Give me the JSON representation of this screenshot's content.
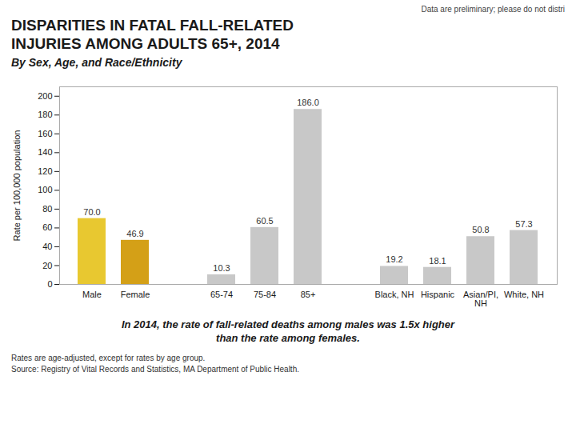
{
  "chart_data": {
    "type": "bar",
    "title": "DISPARITIES IN FATAL FALL-RELATED\nINJURIES AMONG ADULTS 65+, 2014",
    "subtitle": "By Sex, Age, and Race/Ethnicity",
    "categories": [
      "Male",
      "Female",
      null,
      "65-74",
      "75-84",
      "85+",
      null,
      "Black, NH",
      "Hispanic",
      "Asian/PI,\nNH",
      "White, NH"
    ],
    "values": [
      70.0,
      46.9,
      0,
      10.3,
      60.5,
      186.0,
      0,
      19.2,
      18.1,
      50.8,
      57.3
    ],
    "value_labels": [
      "70.0",
      "46.9",
      null,
      "10.3",
      "60.5",
      "186.0",
      null,
      "19.2",
      "18.1",
      "50.8",
      "57.3"
    ],
    "data_labels": true,
    "colors": [
      "#E8C830",
      "#D4A017",
      "#ffffff",
      "#C8C8C8",
      "#C8C8C8",
      "#C8C8C8",
      "#ffffff",
      "#C8C8C8",
      "#C8C8C8",
      "#C8C8C8",
      "#C8C8C8"
    ],
    "ylabel": "Rate per 100,000 population",
    "ylim": [
      0,
      210
    ],
    "yticks": [
      0,
      20,
      40,
      60,
      80,
      100,
      120,
      140,
      160,
      180,
      200
    ],
    "grid": false,
    "annotations": [
      "Data are preliminary; please do not distri",
      "In 2014, the rate of fall-related deaths among males was 1.5x higher",
      "than the rate among females.",
      "Rates are age-adjusted, except for rates by age group.",
      "Source: Registry of Vital Records and Statistics, MA Department of Public Health."
    ]
  }
}
